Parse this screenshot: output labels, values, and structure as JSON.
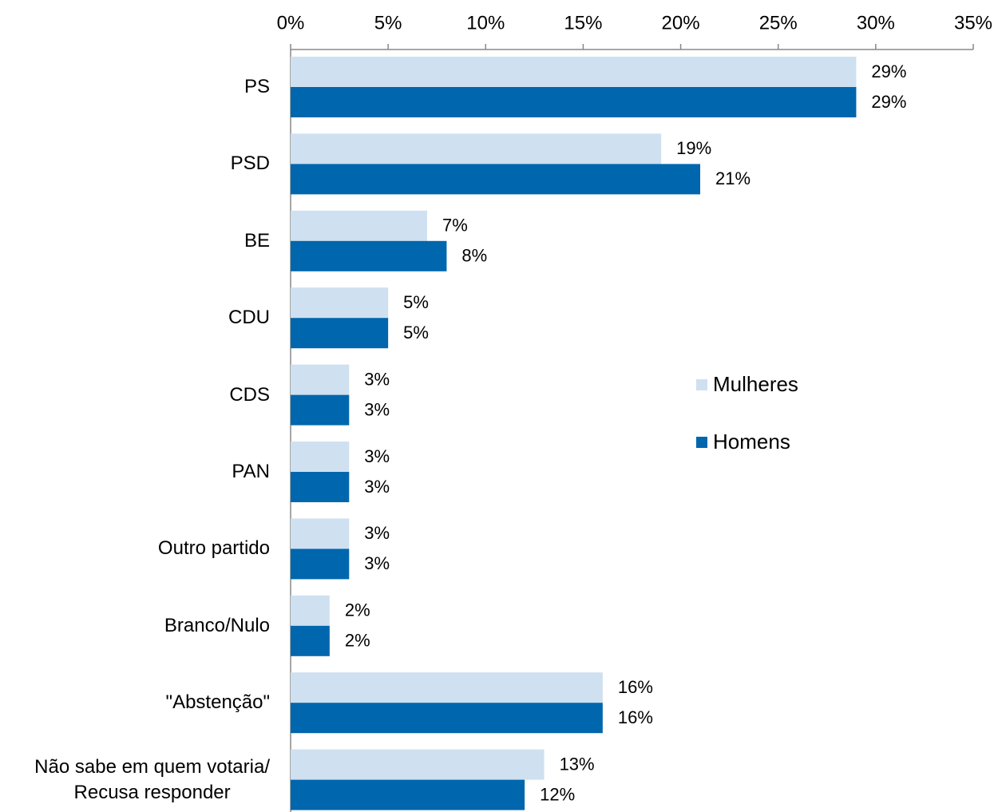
{
  "chart_data": {
    "type": "bar",
    "orientation": "horizontal",
    "categories": [
      "PS",
      "PSD",
      "BE",
      "CDU",
      "CDS",
      "PAN",
      "Outro partido",
      "Branco/Nulo",
      "\"Abstenção\"",
      "Não sabe em quem votaria/\nRecusa responder"
    ],
    "series": [
      {
        "name": "Mulheres",
        "color": "#cfe0f0",
        "values": [
          29,
          19,
          7,
          5,
          3,
          3,
          3,
          2,
          16,
          13
        ],
        "value_labels": [
          "29%",
          "19%",
          "7%",
          "5%",
          "3%",
          "3%",
          "3%",
          "2%",
          "16%",
          "13%"
        ]
      },
      {
        "name": "Homens",
        "color": "#0066ad",
        "values": [
          29,
          21,
          8,
          5,
          3,
          3,
          3,
          2,
          16,
          12
        ],
        "value_labels": [
          "29%",
          "21%",
          "8%",
          "5%",
          "3%",
          "3%",
          "3%",
          "2%",
          "16%",
          "12%"
        ]
      }
    ],
    "xlim": [
      0,
      35
    ],
    "xticks": [
      {
        "value": 0,
        "label": "0%"
      },
      {
        "value": 5,
        "label": "5%"
      },
      {
        "value": 10,
        "label": "10%"
      },
      {
        "value": 15,
        "label": "15%"
      },
      {
        "value": 20,
        "label": "20%"
      },
      {
        "value": 25,
        "label": "25%"
      },
      {
        "value": 30,
        "label": "30%"
      },
      {
        "value": 35,
        "label": "35%"
      }
    ],
    "grid": false
  }
}
